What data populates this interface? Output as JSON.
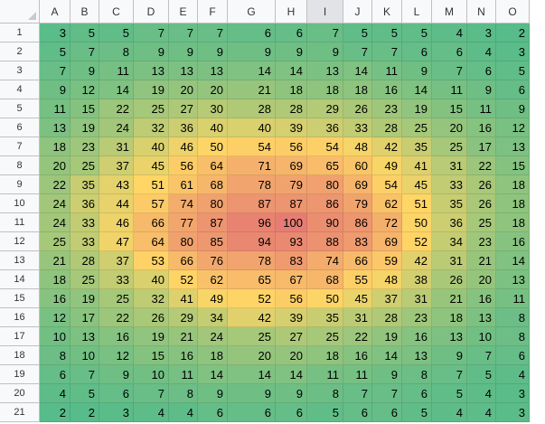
{
  "columns": [
    "A",
    "B",
    "C",
    "D",
    "E",
    "F",
    "G",
    "H",
    "I",
    "J",
    "K",
    "L",
    "M",
    "N",
    "O"
  ],
  "selected_column": "I",
  "rows": [
    {
      "label": "1",
      "values": [
        3,
        5,
        5,
        7,
        7,
        7,
        6,
        6,
        7,
        5,
        5,
        5,
        4,
        3,
        2
      ]
    },
    {
      "label": "2",
      "values": [
        5,
        7,
        8,
        9,
        9,
        9,
        9,
        9,
        9,
        7,
        7,
        6,
        6,
        4,
        3
      ]
    },
    {
      "label": "3",
      "values": [
        7,
        9,
        11,
        13,
        13,
        13,
        14,
        14,
        13,
        14,
        11,
        9,
        7,
        6,
        5
      ]
    },
    {
      "label": "4",
      "values": [
        9,
        12,
        14,
        19,
        20,
        20,
        21,
        18,
        18,
        18,
        16,
        14,
        11,
        9,
        6
      ]
    },
    {
      "label": "5",
      "values": [
        11,
        15,
        22,
        25,
        27,
        30,
        28,
        28,
        29,
        26,
        23,
        19,
        15,
        11,
        9
      ]
    },
    {
      "label": "6",
      "values": [
        13,
        19,
        24,
        32,
        36,
        40,
        40,
        39,
        36,
        33,
        28,
        25,
        20,
        16,
        12
      ]
    },
    {
      "label": "7",
      "values": [
        18,
        23,
        31,
        40,
        46,
        50,
        54,
        56,
        54,
        48,
        42,
        35,
        25,
        17,
        13
      ]
    },
    {
      "label": "8",
      "values": [
        20,
        25,
        37,
        45,
        56,
        64,
        71,
        69,
        65,
        60,
        49,
        41,
        31,
        22,
        15
      ]
    },
    {
      "label": "9",
      "values": [
        22,
        35,
        43,
        51,
        61,
        68,
        78,
        79,
        80,
        69,
        54,
        45,
        33,
        26,
        18
      ]
    },
    {
      "label": "10",
      "values": [
        24,
        36,
        44,
        57,
        74,
        80,
        87,
        87,
        86,
        79,
        62,
        51,
        35,
        26,
        18
      ]
    },
    {
      "label": "11",
      "values": [
        24,
        33,
        46,
        66,
        77,
        87,
        96,
        100,
        90,
        86,
        72,
        50,
        36,
        25,
        18
      ]
    },
    {
      "label": "12",
      "values": [
        25,
        33,
        47,
        64,
        80,
        85,
        94,
        93,
        88,
        83,
        69,
        52,
        34,
        23,
        16
      ]
    },
    {
      "label": "13",
      "values": [
        21,
        28,
        37,
        53,
        66,
        76,
        78,
        83,
        74,
        66,
        59,
        42,
        31,
        21,
        14
      ]
    },
    {
      "label": "14",
      "values": [
        18,
        25,
        33,
        40,
        52,
        62,
        65,
        67,
        68,
        55,
        48,
        38,
        26,
        20,
        13
      ]
    },
    {
      "label": "15",
      "values": [
        16,
        19,
        25,
        32,
        41,
        49,
        52,
        56,
        50,
        45,
        37,
        31,
        21,
        16,
        11
      ]
    },
    {
      "label": "16",
      "values": [
        12,
        17,
        22,
        26,
        29,
        34,
        42,
        39,
        35,
        31,
        28,
        23,
        18,
        13,
        8
      ]
    },
    {
      "label": "17",
      "values": [
        10,
        13,
        16,
        19,
        21,
        24,
        25,
        27,
        25,
        22,
        19,
        16,
        13,
        10,
        8
      ]
    },
    {
      "label": "18",
      "values": [
        8,
        10,
        12,
        15,
        16,
        18,
        20,
        20,
        18,
        16,
        14,
        13,
        9,
        7,
        6
      ]
    },
    {
      "label": "19",
      "values": [
        6,
        7,
        9,
        10,
        11,
        14,
        14,
        14,
        11,
        11,
        9,
        8,
        7,
        5,
        4
      ]
    },
    {
      "label": "20",
      "values": [
        4,
        5,
        6,
        7,
        8,
        9,
        9,
        9,
        8,
        7,
        7,
        6,
        5,
        4,
        3
      ]
    },
    {
      "label": "21",
      "values": [
        2,
        2,
        3,
        4,
        4,
        6,
        6,
        6,
        5,
        6,
        6,
        5,
        4,
        4,
        3
      ]
    }
  ],
  "color_scale": {
    "min_color": "#57bb8a",
    "mid_color": "#ffd666",
    "max_color": "#e67c73",
    "min": 2,
    "mid": 51,
    "max": 100
  }
}
